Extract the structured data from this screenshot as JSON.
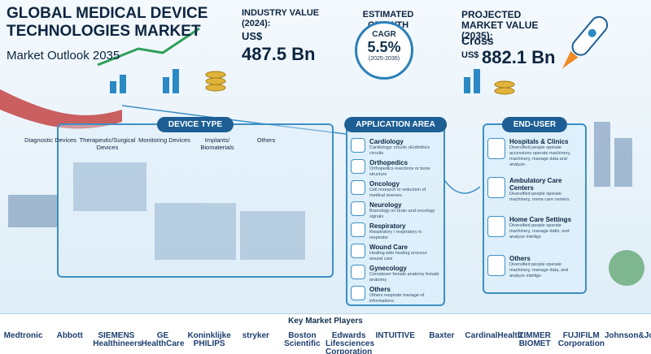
{
  "header": {
    "title": "GLOBAL MEDICAL DEVICE TECHNOLOGIES MARKET",
    "subtitle": "Market Outlook 2035"
  },
  "stats": {
    "industry_value": {
      "label": "INDUSTRY VALUE (2024):",
      "currency": "US$",
      "value": "487.5 Bn"
    },
    "growth": {
      "label": "ESTIMATED GROWTH",
      "metric": "CAGR",
      "value": "5.5%",
      "period": "(2025-2035)"
    },
    "projected_value": {
      "label": "PROJECTED MARKET VALUE (2035):",
      "prefix": "Cross",
      "currency": "US$",
      "value": "882.1 Bn"
    }
  },
  "device_type": {
    "title": "DEVICE TYPE",
    "items": [
      "Diagnostic Devices",
      "Therapeutic/Surgical Devices",
      "Monitoring Devices",
      "Implants/ Biomaterials",
      "Others"
    ]
  },
  "application_area": {
    "title": "APPLICATION AREA",
    "items": [
      {
        "name": "Cardiology",
        "desc": "Cardiologyr orcuits cErdiothics circuits"
      },
      {
        "name": "Orthopedics",
        "desc": "Orthopedics evections or bone structure"
      },
      {
        "name": "Oncology",
        "desc": "Cell research or reduction of medical reseves"
      },
      {
        "name": "Neurology",
        "desc": "Branology on brain and oncology signals"
      },
      {
        "name": "Respiratory",
        "desc": "Respiratory / respiratory in respirator"
      },
      {
        "name": "Wound Care",
        "desc": "Healing wtto healing orocesn wound care"
      },
      {
        "name": "Gynecology",
        "desc": "Cervateser female anatomy female anatomy"
      },
      {
        "name": "Others",
        "desc": "Others respirate manage-of informations"
      }
    ]
  },
  "end_user": {
    "title": "END-USER",
    "items": [
      {
        "name": "Hospitals & Clinics",
        "desc": "Diversified people operate accessions operate machinery, machinery, manage data and analyze."
      },
      {
        "name": "Ambulatory Care Centers",
        "desc": "Diversified people operate machinery, mene care centers"
      },
      {
        "name": "Home Care Settings",
        "desc": "Diversified people operate machinery, manage datts, and analyze intelligs"
      },
      {
        "name": "Others",
        "desc": "Diversified people operate machinery, manage data, and analyze intelligs"
      }
    ]
  },
  "key_players": {
    "title": "Key Market Players",
    "items": [
      "Medtronic",
      "Abbott",
      "SIEMENS Healthineers",
      "GE HealthCare",
      "Koninklijke PHILIPS",
      "stryker",
      "Boston Scientific",
      "Edwards Lifesciences Corporation",
      "INTUITIVE",
      "Baxter",
      "CardinalHealth",
      "ZIMMER BIOMET",
      "FUJIFILM Corporation",
      "Johnson&Johnson"
    ]
  }
}
